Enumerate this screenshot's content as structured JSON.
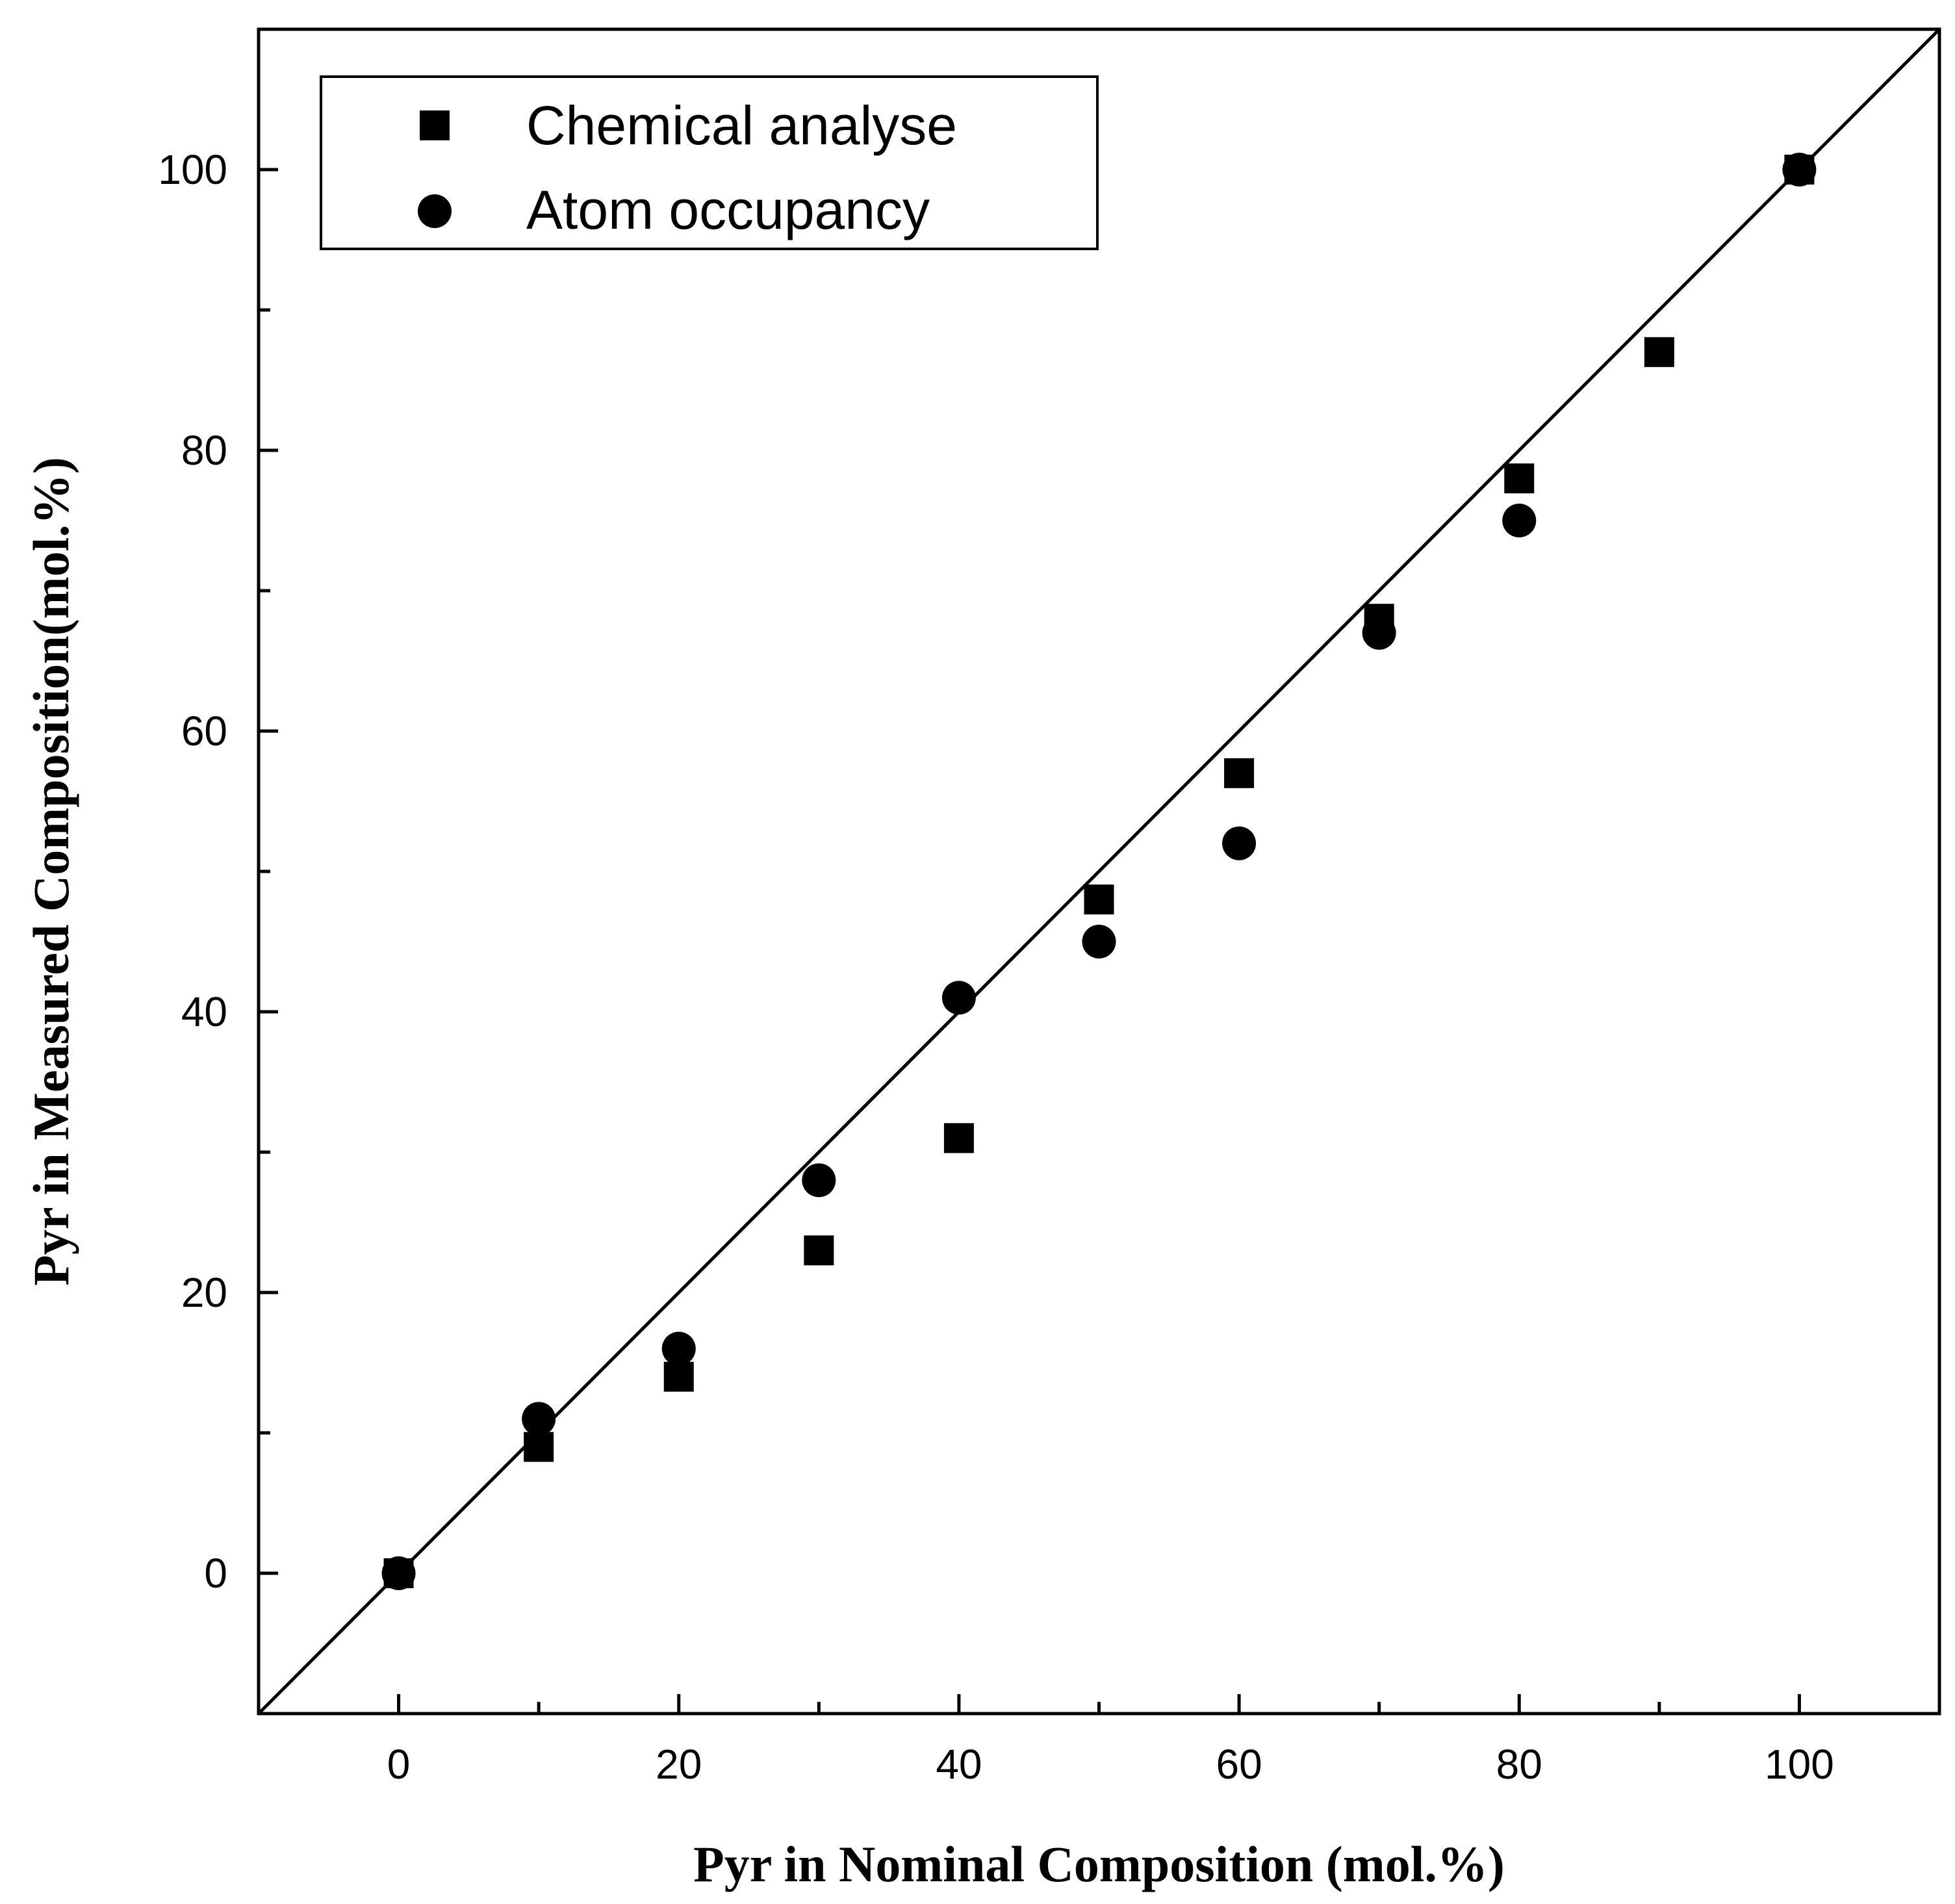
{
  "chart_data": {
    "type": "scatter",
    "title": "",
    "xlabel": "Pyr in Nominal Composition (mol.%)",
    "ylabel": "Pyr in Measured Composition(mol.%)",
    "xlim": [
      -10,
      110
    ],
    "ylim": [
      -10,
      110
    ],
    "x_ticks": [
      0,
      20,
      40,
      60,
      80,
      100
    ],
    "x_minor_ticks": [
      10,
      30,
      50,
      70,
      90
    ],
    "y_ticks": [
      0,
      20,
      40,
      60,
      80,
      100
    ],
    "y_minor_ticks": [
      10,
      30,
      50,
      70,
      90
    ],
    "grid": false,
    "legend_position": "top-left",
    "reference_line": {
      "label": "y = x",
      "from": [
        -10,
        -10
      ],
      "to": [
        110,
        110
      ]
    },
    "series": [
      {
        "name": "Chemical analyse",
        "marker": "square",
        "color": "#000000",
        "x": [
          0,
          10,
          20,
          30,
          40,
          50,
          60,
          70,
          80,
          90,
          100
        ],
        "y": [
          0,
          9,
          14,
          23,
          31,
          48,
          57,
          68,
          78,
          87,
          100
        ]
      },
      {
        "name": "Atom occupancy",
        "marker": "circle",
        "color": "#000000",
        "x": [
          0,
          10,
          20,
          30,
          40,
          50,
          60,
          70,
          80,
          100
        ],
        "y": [
          0,
          11,
          16,
          28,
          41,
          45,
          52,
          67,
          75,
          100
        ]
      }
    ]
  }
}
